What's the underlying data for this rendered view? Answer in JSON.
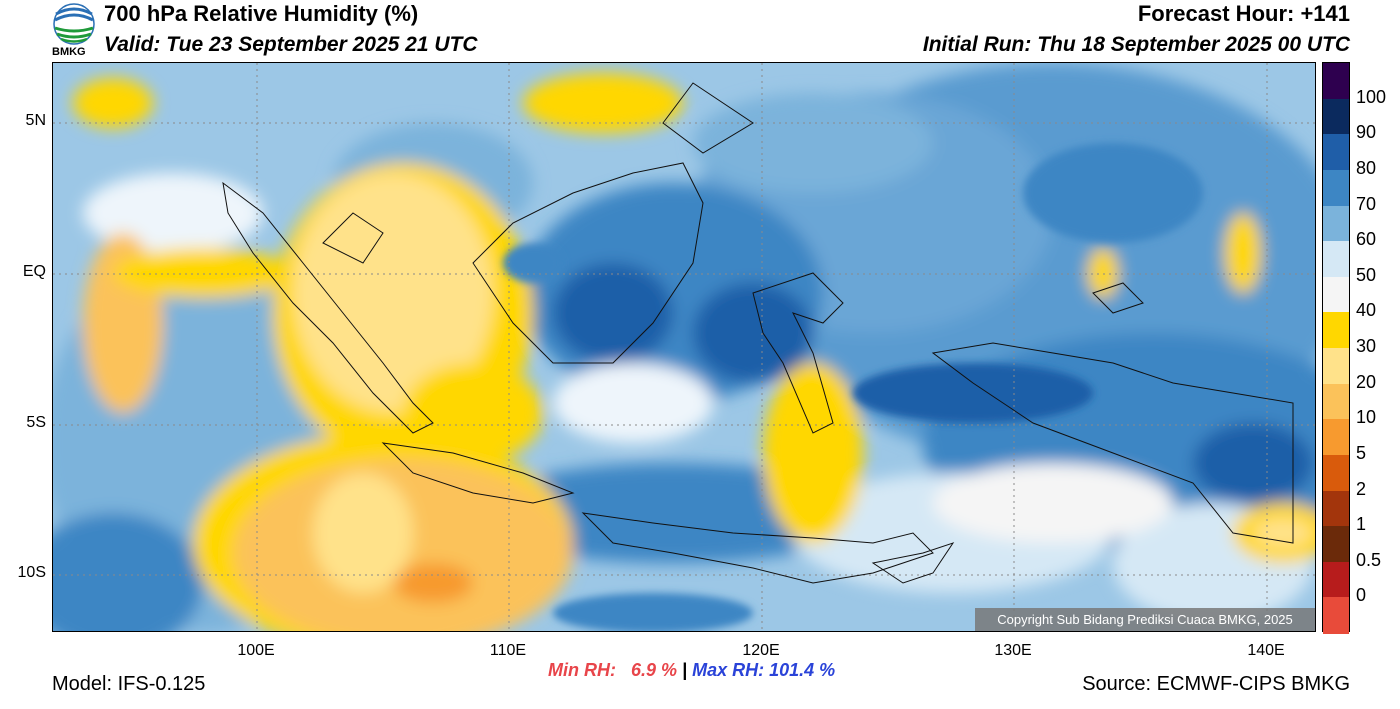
{
  "header": {
    "title": "700 hPa Relative Humidity (%)",
    "valid": "Valid: Tue 23 September 2025 21 UTC",
    "forecast_hour": "Forecast Hour: +141",
    "initial_run": "Initial Run: Thu 18 September 2025 00 UTC"
  },
  "logo": {
    "text": "BMKG"
  },
  "map": {
    "lat_ticks": [
      "5N",
      "EQ",
      "5S",
      "10S"
    ],
    "lon_ticks": [
      "100E",
      "110E",
      "120E",
      "130E",
      "140E"
    ],
    "copyright": "Copyright Sub Bidang Prediksi Cuaca BMKG, 2025"
  },
  "colorbar": {
    "labels": [
      "100",
      "90",
      "80",
      "70",
      "60",
      "50",
      "40",
      "30",
      "20",
      "10",
      "5",
      "2",
      "1",
      "0.5",
      "0"
    ],
    "colors": [
      "#2e004f",
      "#0b2a5e",
      "#1f5ea8",
      "#3d86c4",
      "#7bb3db",
      "#d5e8f5",
      "#f5f5f5",
      "#ffd700",
      "#ffe28a",
      "#fbc25a",
      "#f79a2f",
      "#d95b0c",
      "#a3350c",
      "#6b2a0a",
      "#b71c1c",
      "#e84b3a"
    ]
  },
  "stats": {
    "min_label": "Min RH:",
    "min_value": "6.9 %",
    "separator": "|",
    "max_label": "Max RH:",
    "max_value": "101.4 %"
  },
  "footer": {
    "model": "Model: IFS-0.125",
    "source": "Source: ECMWF-CIPS BMKG"
  }
}
